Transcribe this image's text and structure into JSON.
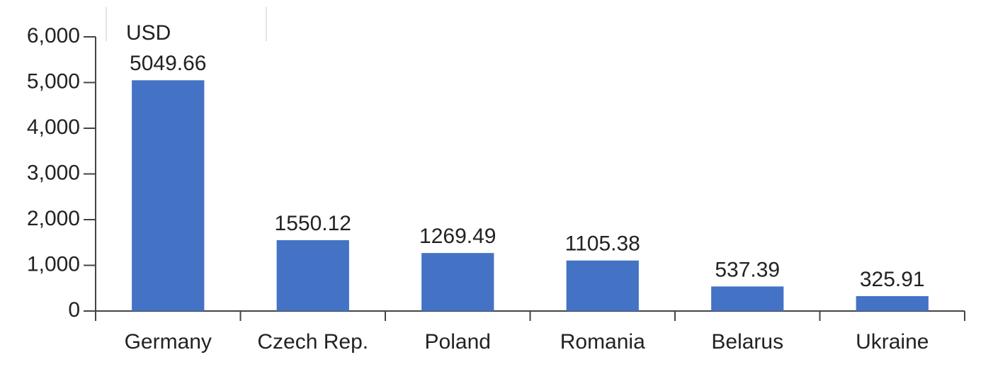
{
  "chart_data": {
    "type": "bar",
    "y_label": "USD",
    "categories": [
      "Germany",
      "Czech Rep.",
      "Poland",
      "Romania",
      "Belarus",
      "Ukraine"
    ],
    "values": [
      5049.66,
      1550.12,
      1269.49,
      1105.38,
      537.39,
      325.91
    ],
    "color": "#4472c4",
    "ylim": [
      0,
      6000
    ],
    "yticks": [
      0,
      {
        "value": 1000,
        "label": "1,000"
      },
      {
        "value": 2000,
        "label": "2,000"
      },
      {
        "value": 3000,
        "label": "3,000"
      },
      {
        "value": 4000,
        "label": "4,000"
      },
      {
        "value": 5000,
        "label": "5,000"
      },
      {
        "value": 6000,
        "label": "6,000"
      }
    ]
  }
}
